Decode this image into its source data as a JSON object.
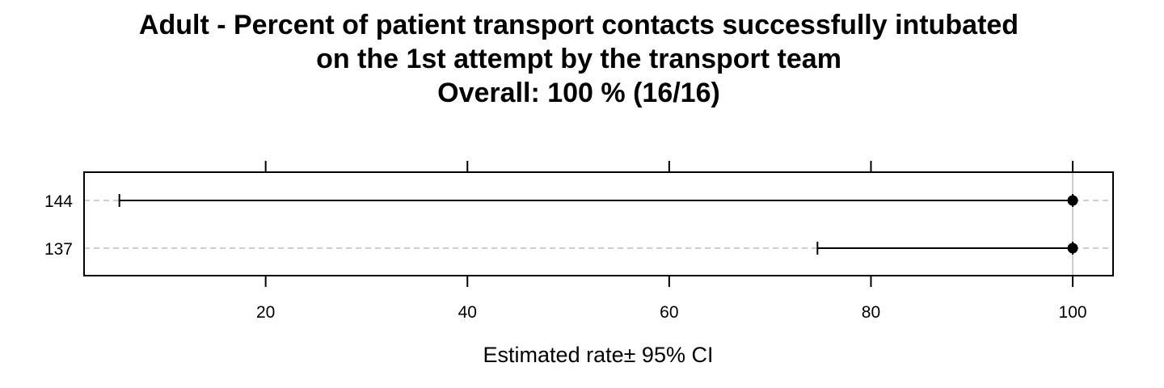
{
  "chart_data": {
    "type": "dot-plot with confidence intervals",
    "title_lines": [
      "Adult - Percent of patient transport contacts successfully intubated",
      "on the 1st attempt by the transport team",
      "Overall:  100 %  (16/16)"
    ],
    "xlabel": "Estimated rate± 95% CI",
    "xlim": [
      2,
      104
    ],
    "x_ticks": [
      20,
      40,
      60,
      80,
      100
    ],
    "reference_line": 100,
    "grid": "dashed horizontal lines at each category",
    "categories": [
      "144",
      "137"
    ],
    "points": [
      {
        "category": "144",
        "estimate": 100,
        "ci_lower": 5.5,
        "ci_upper": 100
      },
      {
        "category": "137",
        "estimate": 100,
        "ci_lower": 74.7,
        "ci_upper": 100
      }
    ]
  }
}
